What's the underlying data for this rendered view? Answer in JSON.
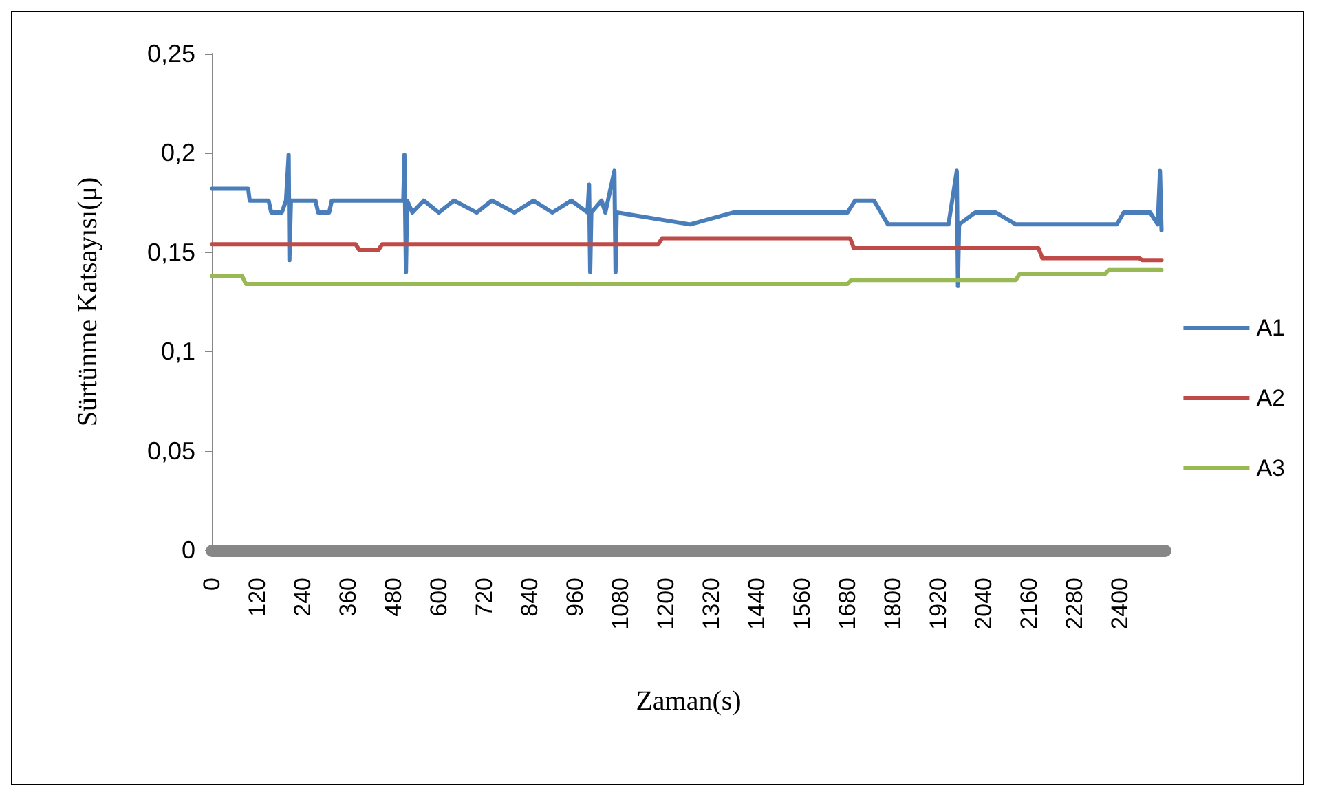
{
  "chart_data": {
    "type": "line",
    "xlabel": "Zaman(s)",
    "ylabel": "Sürtünme Katsayısı(μ)",
    "xlim": [
      0,
      2520
    ],
    "xticks": [
      0,
      120,
      240,
      360,
      480,
      600,
      720,
      840,
      960,
      1080,
      1200,
      1320,
      1440,
      1560,
      1680,
      1800,
      1920,
      2040,
      2160,
      2280,
      2400
    ],
    "ylim": [
      0,
      0.25
    ],
    "yticks": [
      {
        "value": 0,
        "label": "0"
      },
      {
        "value": 0.05,
        "label": "0,05"
      },
      {
        "value": 0.1,
        "label": "0,1"
      },
      {
        "value": 0.15,
        "label": "0,15"
      },
      {
        "value": 0.2,
        "label": "0,2"
      },
      {
        "value": 0.25,
        "label": "0,25"
      }
    ],
    "grid": false,
    "legend": "right",
    "marker": "none",
    "line_style": "solid",
    "series": [
      {
        "name": "A1",
        "color": "#4a7ebb",
        "x": [
          0,
          96,
          100,
          150,
          157,
          185,
          196,
          203,
          205,
          209,
          214,
          274,
          281,
          310,
          317,
          506,
          509,
          513,
          516,
          530,
          560,
          600,
          640,
          700,
          740,
          800,
          850,
          900,
          950,
          993,
          997,
          1000,
          1003,
          1030,
          1040,
          1064,
          1067,
          1070,
          1264,
          1378,
          1680,
          1700,
          1750,
          1787,
          1947,
          1969,
          1972,
          1975,
          2018,
          2072,
          2125,
          2392,
          2410,
          2480,
          2500,
          2506,
          2510
        ],
        "values": [
          0.182,
          0.182,
          0.176,
          0.176,
          0.17,
          0.17,
          0.176,
          0.199,
          0.146,
          0.176,
          0.176,
          0.176,
          0.17,
          0.17,
          0.176,
          0.176,
          0.199,
          0.14,
          0.176,
          0.17,
          0.176,
          0.17,
          0.176,
          0.17,
          0.176,
          0.17,
          0.176,
          0.17,
          0.176,
          0.17,
          0.184,
          0.14,
          0.17,
          0.176,
          0.17,
          0.191,
          0.14,
          0.17,
          0.164,
          0.17,
          0.17,
          0.176,
          0.176,
          0.164,
          0.164,
          0.191,
          0.133,
          0.164,
          0.17,
          0.17,
          0.164,
          0.164,
          0.17,
          0.17,
          0.164,
          0.191,
          0.161
        ]
      },
      {
        "name": "A2",
        "color": "#be4b48",
        "x": [
          0,
          380,
          390,
          440,
          450,
          1180,
          1190,
          1687,
          1697,
          2185,
          2195,
          2450,
          2460,
          2510
        ],
        "values": [
          0.154,
          0.154,
          0.151,
          0.151,
          0.154,
          0.154,
          0.157,
          0.157,
          0.152,
          0.152,
          0.147,
          0.147,
          0.146,
          0.146
        ]
      },
      {
        "name": "A3",
        "color": "#98b954",
        "x": [
          0,
          80,
          90,
          1680,
          1690,
          2125,
          2135,
          2360,
          2370,
          2510
        ],
        "values": [
          0.138,
          0.138,
          0.134,
          0.134,
          0.136,
          0.136,
          0.139,
          0.139,
          0.141,
          0.141
        ]
      }
    ]
  }
}
